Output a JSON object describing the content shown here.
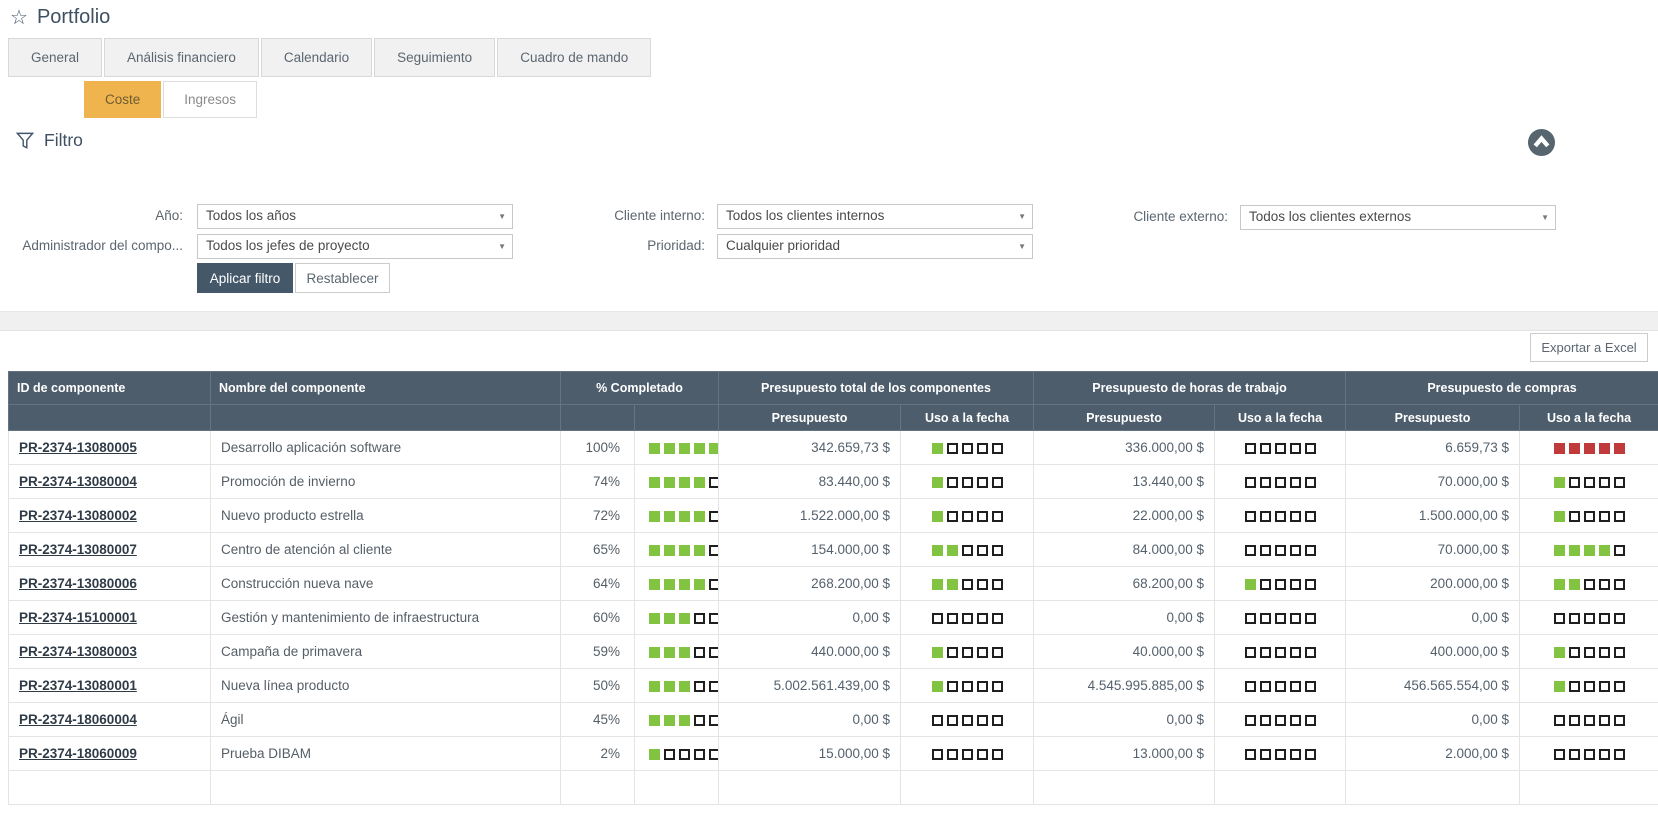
{
  "page": {
    "title": "Portfolio"
  },
  "icons": {
    "star": "star-icon",
    "funnel": "filter-icon",
    "collapse": "collapse-up-icon",
    "dropdown": "chevron-down-icon"
  },
  "tabs": [
    {
      "label": "General"
    },
    {
      "label": "Análisis financiero"
    },
    {
      "label": "Calendario"
    },
    {
      "label": "Seguimiento"
    },
    {
      "label": "Cuadro de mando"
    }
  ],
  "subtabs": [
    {
      "label": "Coste",
      "active": true
    },
    {
      "label": "Ingresos",
      "active": false
    }
  ],
  "filter": {
    "title": "Filtro",
    "fields": [
      {
        "label": "Año:",
        "value": "Todos los años"
      },
      {
        "label": "Administrador del compo...",
        "value": "Todos los jefes de proyecto"
      },
      {
        "label": "Cliente interno:",
        "value": "Todos los clientes internos"
      },
      {
        "label": "Prioridad:",
        "value": "Cualquier prioridad"
      },
      {
        "label": "Cliente externo:",
        "value": "Todos los clientes externos"
      }
    ],
    "apply_label": "Aplicar filtro",
    "reset_label": "Restablecer"
  },
  "toolbar": {
    "export_label": "Exportar a Excel"
  },
  "table": {
    "group_headers": [
      "ID de componente",
      "Nombre del componente",
      "% Completado",
      "Presupuesto total de los componentes",
      "Presupuesto de horas de trabajo",
      "Presupuesto de compras"
    ],
    "sub_headers": [
      "Presupuesto",
      "Uso a la fecha"
    ],
    "rows": [
      {
        "id": "PR-2374-13080005",
        "name": "Desarrollo aplicación software",
        "pct": "100%",
        "pct_filled": 5,
        "total_presupuesto": "342.659,73 $",
        "total_uso": 1,
        "horas_presupuesto": "336.000,00 $",
        "horas_uso": 0,
        "compras_presupuesto": "6.659,73 $",
        "compras_uso": 5,
        "compras_uso_color": "red"
      },
      {
        "id": "PR-2374-13080004",
        "name": "Promoción de invierno",
        "pct": "74%",
        "pct_filled": 4,
        "total_presupuesto": "83.440,00 $",
        "total_uso": 1,
        "horas_presupuesto": "13.440,00 $",
        "horas_uso": 0,
        "compras_presupuesto": "70.000,00 $",
        "compras_uso": 1
      },
      {
        "id": "PR-2374-13080002",
        "name": "Nuevo producto estrella",
        "pct": "72%",
        "pct_filled": 4,
        "total_presupuesto": "1.522.000,00 $",
        "total_uso": 1,
        "horas_presupuesto": "22.000,00 $",
        "horas_uso": 0,
        "compras_presupuesto": "1.500.000,00 $",
        "compras_uso": 1
      },
      {
        "id": "PR-2374-13080007",
        "name": "Centro de atención al cliente",
        "pct": "65%",
        "pct_filled": 4,
        "total_presupuesto": "154.000,00 $",
        "total_uso": 2,
        "horas_presupuesto": "84.000,00 $",
        "horas_uso": 0,
        "compras_presupuesto": "70.000,00 $",
        "compras_uso": 4
      },
      {
        "id": "PR-2374-13080006",
        "name": "Construcción nueva nave",
        "pct": "64%",
        "pct_filled": 4,
        "total_presupuesto": "268.200,00 $",
        "total_uso": 2,
        "horas_presupuesto": "68.200,00 $",
        "horas_uso": 1,
        "compras_presupuesto": "200.000,00 $",
        "compras_uso": 2
      },
      {
        "id": "PR-2374-15100001",
        "name": "Gestión y mantenimiento de infraestructura",
        "pct": "60%",
        "pct_filled": 3,
        "total_presupuesto": "0,00 $",
        "total_uso": 0,
        "horas_presupuesto": "0,00 $",
        "horas_uso": 0,
        "compras_presupuesto": "0,00 $",
        "compras_uso": 0
      },
      {
        "id": "PR-2374-13080003",
        "name": "Campaña de primavera",
        "pct": "59%",
        "pct_filled": 3,
        "total_presupuesto": "440.000,00 $",
        "total_uso": 1,
        "horas_presupuesto": "40.000,00 $",
        "horas_uso": 0,
        "compras_presupuesto": "400.000,00 $",
        "compras_uso": 1
      },
      {
        "id": "PR-2374-13080001",
        "name": "Nueva línea producto",
        "pct": "50%",
        "pct_filled": 3,
        "total_presupuesto": "5.002.561.439,00 $",
        "total_uso": 1,
        "horas_presupuesto": "4.545.995.885,00 $",
        "horas_uso": 0,
        "compras_presupuesto": "456.565.554,00 $",
        "compras_uso": 1
      },
      {
        "id": "PR-2374-18060004",
        "name": "Ágil",
        "pct": "45%",
        "pct_filled": 3,
        "total_presupuesto": "0,00 $",
        "total_uso": 0,
        "horas_presupuesto": "0,00 $",
        "horas_uso": 0,
        "compras_presupuesto": "0,00 $",
        "compras_uso": 0
      },
      {
        "id": "PR-2374-18060009",
        "name": "Prueba DIBAM",
        "pct": "2%",
        "pct_filled": 1,
        "total_presupuesto": "15.000,00 $",
        "total_uso": 0,
        "horas_presupuesto": "13.000,00 $",
        "horas_uso": 0,
        "compras_presupuesto": "2.000,00 $",
        "compras_uso": 0
      }
    ]
  },
  "colors": {
    "header_bg": "#4e5d6c",
    "accent_orange": "#f0b44f",
    "square_green": "#82c341",
    "square_red": "#c0393b",
    "button_dark": "#45586a"
  }
}
